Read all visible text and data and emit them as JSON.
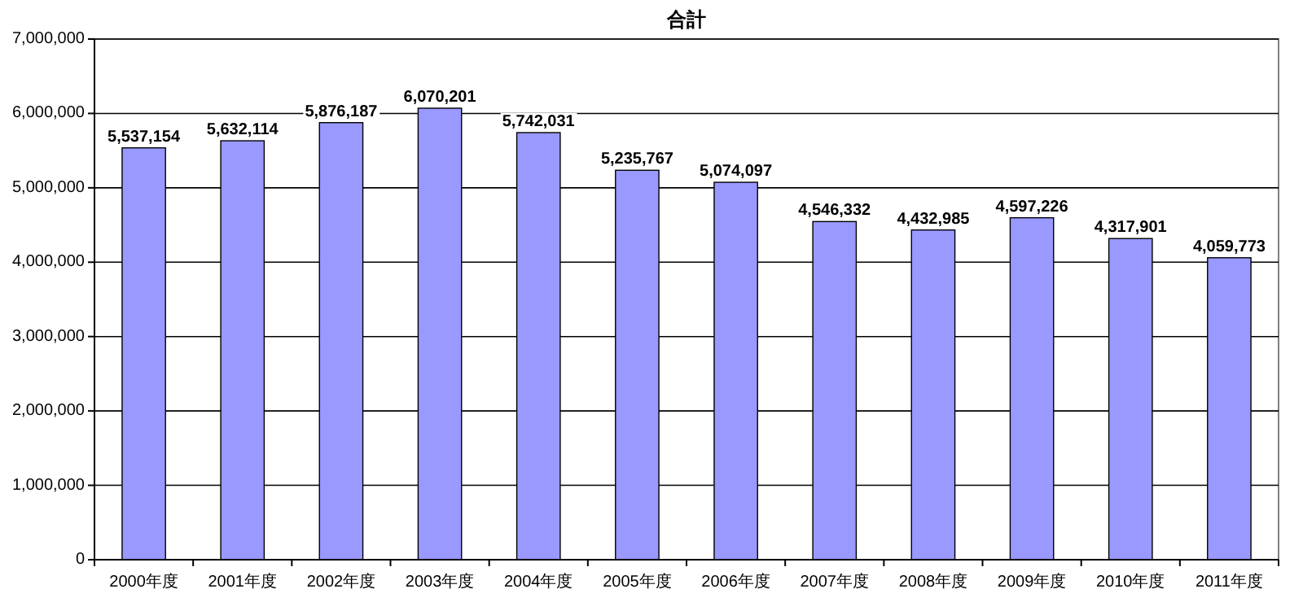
{
  "chart_data": {
    "type": "bar",
    "title": "合計",
    "categories": [
      "2000年度",
      "2001年度",
      "2002年度",
      "2003年度",
      "2004年度",
      "2005年度",
      "2006年度",
      "2007年度",
      "2008年度",
      "2009年度",
      "2010年度",
      "2011年度"
    ],
    "values": [
      5537154,
      5632114,
      5876187,
      6070201,
      5742031,
      5235767,
      5074097,
      4546332,
      4432985,
      4597226,
      4317901,
      4059773
    ],
    "value_labels": [
      "5,537,154",
      "5,632,114",
      "5,876,187",
      "6,070,201",
      "5,742,031",
      "5,235,767",
      "5,074,097",
      "4,546,332",
      "4,432,985",
      "4,597,226",
      "4,317,901",
      "4,059,773"
    ],
    "color": "#9999ff",
    "ylim": [
      0,
      7000000
    ],
    "yticks": [
      0,
      {
        "value": 1000000,
        "label": "1,000,000"
      },
      {
        "value": 2000000,
        "label": "2,000,000"
      },
      {
        "value": 3000000,
        "label": "3,000,000"
      },
      {
        "value": 4000000,
        "label": "4,000,000"
      },
      {
        "value": 5000000,
        "label": "5,000,000"
      },
      {
        "value": 6000000,
        "label": "6,000,000"
      },
      {
        "value": 7000000,
        "label": "7,000,000"
      }
    ],
    "grid": "y"
  }
}
